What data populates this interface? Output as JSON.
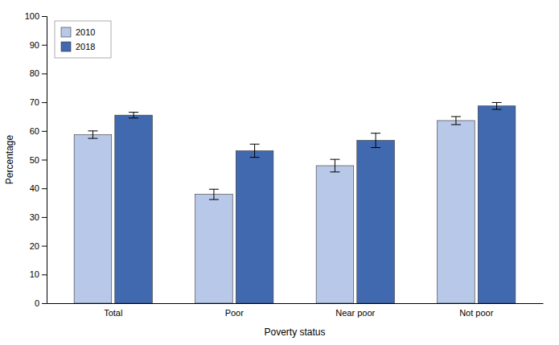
{
  "chart_data": {
    "type": "bar",
    "categories": [
      "Total",
      "Poor",
      "Near poor",
      "Not poor"
    ],
    "series": [
      {
        "name": "2010",
        "color": "#b8c8e8",
        "values": [
          58.7,
          37.9,
          47.9,
          63.6
        ],
        "errors": [
          1.3,
          1.8,
          2.2,
          1.4
        ]
      },
      {
        "name": "2018",
        "color": "#4169b0",
        "values": [
          65.5,
          53.1,
          56.7,
          68.7
        ],
        "errors": [
          1.0,
          2.3,
          2.5,
          1.2
        ]
      }
    ],
    "xlabel": "Poverty status",
    "ylabel": "Percentage",
    "ylim": [
      0,
      100
    ],
    "yticks": [
      0,
      10,
      20,
      30,
      40,
      50,
      60,
      70,
      80,
      90,
      100
    ],
    "grid": false,
    "legend": "upper left"
  }
}
